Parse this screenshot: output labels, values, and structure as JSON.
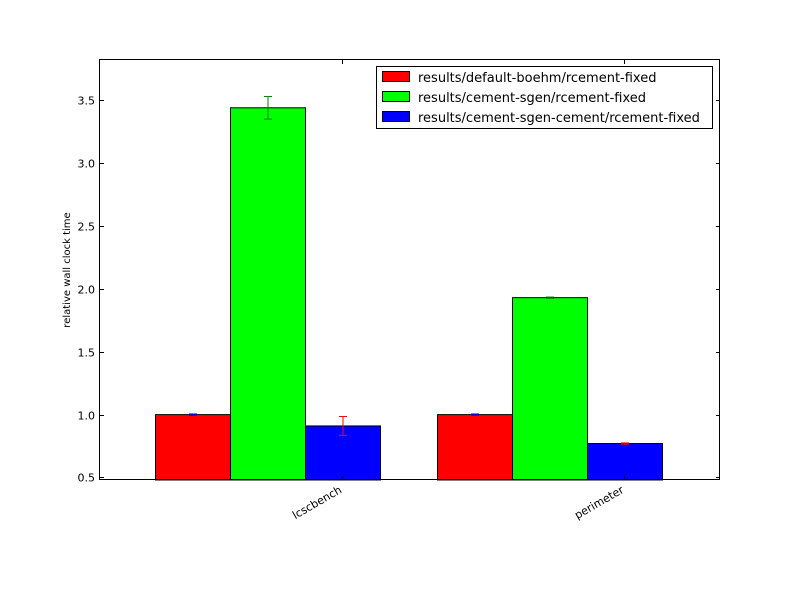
{
  "chart_data": {
    "type": "bar",
    "title": "",
    "xlabel": "",
    "ylabel": "relative wall clock time",
    "categories": [
      "lcscbench",
      "perimeter"
    ],
    "ylim": [
      0.48,
      3.82
    ],
    "yticks": [
      "0.5",
      "1.0",
      "1.5",
      "2.0",
      "2.5",
      "3.0",
      "3.5"
    ],
    "ytick_values": [
      0.5,
      1.0,
      1.5,
      2.0,
      2.5,
      3.0,
      3.5
    ],
    "legend_position": "top-right",
    "grid": false,
    "series": [
      {
        "name": "results/default-boehm/rcement-fixed",
        "color": "#ff0000",
        "values": [
          1.0,
          1.0
        ],
        "errors": [
          0.005,
          0.005
        ],
        "error_color": "#0000ff"
      },
      {
        "name": "results/cement-sgen/rcement-fixed",
        "color": "#00ff00",
        "values": [
          3.44,
          1.93
        ],
        "errors": [
          0.09,
          0.005
        ],
        "error_color": "#008000"
      },
      {
        "name": "results/cement-sgen-cement/rcement-fixed",
        "color": "#0000ff",
        "values": [
          0.91,
          0.77
        ],
        "errors": [
          0.075,
          0.005
        ],
        "error_color": "#ff0000"
      }
    ]
  }
}
